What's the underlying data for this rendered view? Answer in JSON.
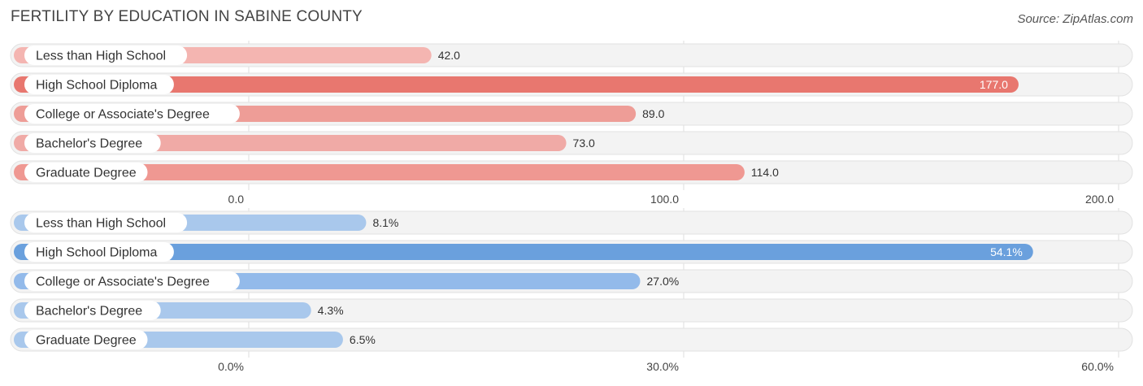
{
  "title": "FERTILITY BY EDUCATION IN SABINE COUNTY",
  "source": "Source: ZipAtlas.com",
  "chart_data": [
    {
      "type": "bar",
      "orientation": "horizontal",
      "categories": [
        "Less than High School",
        "High School Diploma",
        "College or Associate's Degree",
        "Bachelor's Degree",
        "Graduate Degree"
      ],
      "values": [
        42.0,
        177.0,
        89.0,
        73.0,
        114.0
      ],
      "value_labels": [
        "42.0",
        "177.0",
        "89.0",
        "73.0",
        "114.0"
      ],
      "xlim": [
        0,
        200
      ],
      "ticks": [
        0,
        100,
        200
      ],
      "tick_labels": [
        "0.0",
        "100.0",
        "200.0"
      ],
      "colors": [
        "#f4b5b1",
        "#e8776f",
        "#ee9d97",
        "#f0aaa6",
        "#ef9892"
      ],
      "grid": true
    },
    {
      "type": "bar",
      "orientation": "horizontal",
      "categories": [
        "Less than High School",
        "High School Diploma",
        "College or Associate's Degree",
        "Bachelor's Degree",
        "Graduate Degree"
      ],
      "values": [
        8.1,
        54.1,
        27.0,
        4.3,
        6.5
      ],
      "value_labels": [
        "8.1%",
        "54.1%",
        "27.0%",
        "4.3%",
        "6.5%"
      ],
      "xlim": [
        0,
        60
      ],
      "ticks": [
        0,
        30,
        60
      ],
      "tick_labels": [
        "0.0%",
        "30.0%",
        "60.0%"
      ],
      "colors": [
        "#a9c8ec",
        "#6aa0dd",
        "#93baea",
        "#a9c8ec",
        "#a9c8ec"
      ],
      "grid": true
    }
  ]
}
